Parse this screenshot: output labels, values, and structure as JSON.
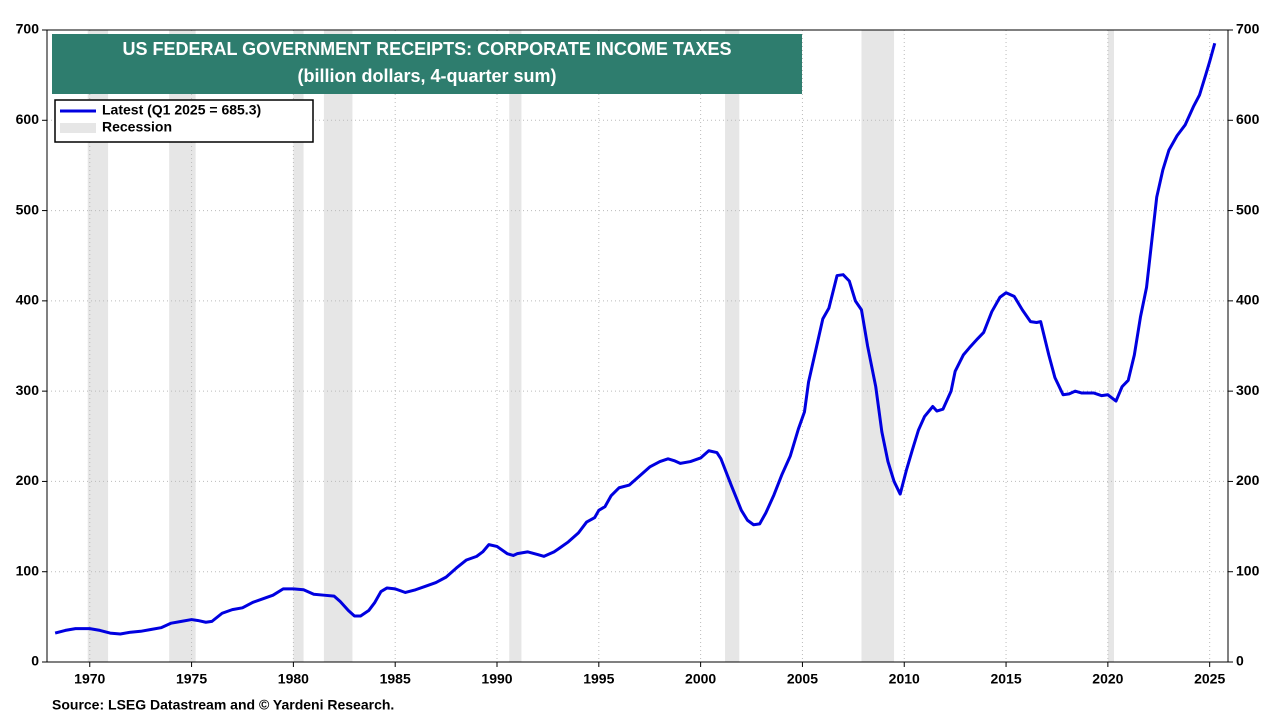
{
  "chart_data": {
    "type": "line",
    "title": "US FEDERAL GOVERNMENT RECEIPTS: CORPORATE INCOME TAXES",
    "subtitle": "(billion dollars, 4-quarter sum)",
    "source": "Source: LSEG Datastream and © Yardeni Research.",
    "recession_label": "Recession",
    "recession_color": "#e6e6e6",
    "recessions": [
      [
        1969.9,
        1970.9
      ],
      [
        1973.9,
        1975.2
      ],
      [
        1980.0,
        1980.5
      ],
      [
        1981.5,
        1982.9
      ],
      [
        1990.6,
        1991.2
      ],
      [
        2001.2,
        2001.9
      ],
      [
        2007.9,
        2009.5
      ],
      [
        2020.0,
        2020.3
      ]
    ],
    "x": [
      1968.3,
      1968.8,
      1969.3,
      1970,
      1970.5,
      1971,
      1971.5,
      1972,
      1972.5,
      1973,
      1973.5,
      1974,
      1974.5,
      1975,
      1975.3,
      1975.7,
      1976,
      1976.5,
      1977,
      1977.5,
      1978,
      1978.5,
      1979,
      1979.5,
      1980,
      1980.5,
      1981,
      1981.5,
      1982,
      1982.3,
      1982.7,
      1983,
      1983.3,
      1983.7,
      1984,
      1984.3,
      1984.6,
      1985,
      1985.5,
      1986,
      1986.5,
      1987,
      1987.5,
      1988,
      1988.5,
      1989,
      1989.3,
      1989.6,
      1990,
      1990.5,
      1990.8,
      1991,
      1991.5,
      1992,
      1992.3,
      1992.8,
      1993,
      1993.5,
      1994,
      1994.4,
      1994.8,
      1995,
      1995.3,
      1995.6,
      1996,
      1996.5,
      1997,
      1997.5,
      1998,
      1998.4,
      1998.7,
      1999,
      1999.5,
      2000,
      2000.4,
      2000.8,
      2001,
      2001.5,
      2002,
      2002.3,
      2002.6,
      2002.9,
      2003.2,
      2003.6,
      2004,
      2004.4,
      2004.8,
      2005.1,
      2005.3,
      2005.7,
      2006,
      2006.3,
      2006.7,
      2007,
      2007.3,
      2007.6,
      2007.9,
      2008.2,
      2008.6,
      2008.9,
      2009.2,
      2009.5,
      2009.8,
      2010.1,
      2010.4,
      2010.7,
      2011,
      2011.4,
      2011.6,
      2011.9,
      2012.3,
      2012.5,
      2012.9,
      2013.2,
      2013.6,
      2013.9,
      2014.3,
      2014.7,
      2015,
      2015.4,
      2015.8,
      2016.2,
      2016.5,
      2016.7,
      2017.1,
      2017.4,
      2017.8,
      2018.1,
      2018.4,
      2018.7,
      2019.3,
      2019.7,
      2020,
      2020.4,
      2020.7,
      2021,
      2021.3,
      2021.6,
      2021.9,
      2022.2,
      2022.4,
      2022.7,
      2023,
      2023.4,
      2023.8,
      2024.2,
      2024.5,
      2024.8,
      2025,
      2025.25
    ],
    "series": [
      {
        "name": "Latest (Q1 2025 = 685.3)",
        "color": "#0000e0",
        "values": [
          32,
          35,
          37,
          37,
          35,
          32,
          31,
          33,
          34,
          36,
          38,
          43,
          45,
          47,
          46,
          44,
          45,
          54,
          58,
          60,
          66,
          70,
          74,
          81,
          81,
          80,
          75,
          74,
          73,
          67,
          57,
          51,
          51,
          57,
          66,
          78,
          82,
          81,
          77,
          80,
          84,
          88,
          94,
          104,
          113,
          117,
          122,
          130,
          128,
          120,
          118,
          120,
          122,
          119,
          117,
          122,
          125,
          133,
          143,
          155,
          160,
          168,
          172,
          184,
          193,
          196,
          206,
          216,
          222,
          225,
          223,
          220,
          222,
          226,
          234,
          232,
          225,
          196,
          168,
          157,
          152,
          153,
          165,
          185,
          208,
          228,
          258,
          277,
          310,
          350,
          380,
          392,
          428,
          429,
          422,
          400,
          390,
          350,
          305,
          255,
          222,
          200,
          186,
          212,
          235,
          257,
          272,
          283,
          278,
          280,
          300,
          322,
          340,
          348,
          358,
          365,
          388,
          404,
          409,
          405,
          390,
          377,
          376,
          377,
          340,
          315,
          296,
          297,
          300,
          298,
          298,
          295,
          296,
          289,
          305,
          312,
          340,
          382,
          415,
          475,
          515,
          545,
          567,
          583,
          595,
          615,
          628,
          650,
          665,
          685.3
        ]
      }
    ],
    "xlim": [
      1967.9,
      2025.9
    ],
    "xticks": [
      1970,
      1975,
      1980,
      1985,
      1990,
      1995,
      2000,
      2005,
      2010,
      2015,
      2020,
      2025
    ],
    "ylim": [
      0,
      700
    ],
    "yticks": [
      0,
      100,
      200,
      300,
      400,
      500,
      600,
      700
    ],
    "grid": true
  }
}
